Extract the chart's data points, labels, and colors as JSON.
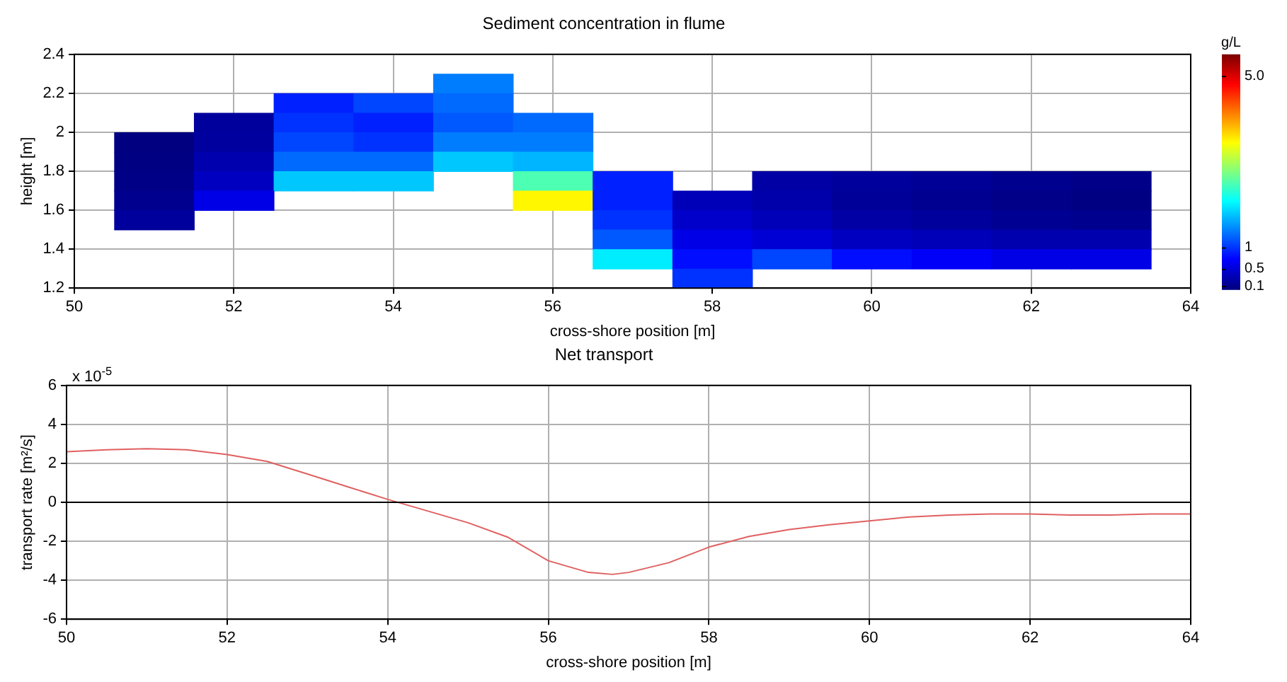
{
  "chart_data": [
    {
      "type": "heatmap",
      "title": "Sediment concentration in flume",
      "xlabel": "cross-shore position [m]",
      "ylabel": "height [m]",
      "clabel": "g/L",
      "x": [
        51,
        52,
        53,
        54,
        55,
        56,
        57,
        58,
        59,
        60,
        61,
        62,
        63
      ],
      "y": [
        2.25,
        2.15,
        2.05,
        1.95,
        1.85,
        1.75,
        1.65,
        1.55,
        1.45,
        1.35,
        1.25
      ],
      "cells": [
        [
          null,
          null,
          null,
          null,
          1.4,
          null,
          null,
          null,
          null,
          null,
          null,
          null,
          null
        ],
        [
          null,
          null,
          0.9,
          1.1,
          1.3,
          null,
          null,
          null,
          null,
          null,
          null,
          null,
          null
        ],
        [
          null,
          0.2,
          1.0,
          0.9,
          1.2,
          1.3,
          null,
          null,
          null,
          null,
          null,
          null,
          null
        ],
        [
          0.06,
          0.22,
          1.1,
          1.0,
          1.4,
          1.4,
          null,
          null,
          null,
          null,
          null,
          null,
          null
        ],
        [
          0.07,
          0.3,
          1.3,
          1.3,
          1.8,
          1.7,
          null,
          null,
          null,
          null,
          null,
          null,
          null
        ],
        [
          0.09,
          0.4,
          1.8,
          1.8,
          null,
          2.5,
          0.9,
          null,
          0.25,
          0.2,
          0.17,
          0.13,
          0.1
        ],
        [
          0.13,
          0.6,
          null,
          null,
          null,
          3.5,
          0.9,
          0.35,
          0.28,
          0.18,
          0.14,
          0.1,
          0.07
        ],
        [
          0.2,
          null,
          null,
          null,
          null,
          null,
          1.0,
          0.45,
          0.35,
          0.25,
          0.2,
          0.15,
          0.13
        ],
        [
          null,
          null,
          null,
          null,
          null,
          null,
          1.2,
          0.6,
          0.5,
          0.4,
          0.35,
          0.3,
          0.3
        ],
        [
          null,
          null,
          null,
          null,
          null,
          null,
          2.0,
          0.8,
          1.1,
          0.8,
          0.7,
          0.6,
          0.6
        ],
        [
          null,
          null,
          null,
          null,
          null,
          null,
          null,
          1.0,
          null,
          null,
          null,
          null,
          null
        ]
      ],
      "xlim": [
        50,
        64
      ],
      "xticks": [
        50,
        52,
        54,
        56,
        58,
        60,
        62,
        64
      ],
      "ylim": [
        1.2,
        2.4
      ],
      "yticks": [
        1.2,
        1.4,
        1.6,
        1.8,
        2,
        2.2,
        2.4
      ],
      "clim": [
        0.05,
        5.5
      ],
      "cticks": [
        0.1,
        0.5,
        1,
        {
          "value": 5,
          "label": "5.0"
        }
      ],
      "grid": true,
      "legend": false
    },
    {
      "type": "line",
      "title": "Net transport",
      "xlabel": "cross-shore position [m]",
      "ylabel": "transport rate [m²/s]",
      "annotations": [
        "x 10$^{-5}$"
      ],
      "series": [
        {
          "color": "#e06060",
          "x": [
            50,
            50.5,
            51,
            51.5,
            52,
            52.5,
            53,
            53.5,
            54,
            54.5,
            55,
            55.5,
            56,
            56.5,
            56.8,
            57,
            57.5,
            58,
            58.5,
            59,
            59.5,
            60,
            60.5,
            61,
            61.5,
            62,
            62.5,
            63,
            63.5,
            64
          ],
          "values": [
            2.6,
            2.7,
            2.75,
            2.7,
            2.45,
            2.1,
            1.45,
            0.8,
            0.15,
            -0.45,
            -1.05,
            -1.8,
            -3.0,
            -3.6,
            -3.7,
            -3.6,
            -3.1,
            -2.3,
            -1.75,
            -1.4,
            -1.15,
            -0.95,
            -0.75,
            -0.65,
            -0.6,
            -0.6,
            -0.65,
            -0.65,
            -0.6,
            -0.6
          ]
        }
      ],
      "xlim": [
        50,
        64
      ],
      "xticks": [
        50,
        52,
        54,
        56,
        58,
        60,
        62,
        64
      ],
      "ylim": [
        -6,
        6
      ],
      "yticks": [
        -6,
        -4,
        -2,
        0,
        2,
        4,
        6
      ],
      "ref_lines": [
        {
          "axis": "y",
          "value": 0,
          "color": "#000000"
        }
      ],
      "grid": true,
      "legend": false,
      "marker": "none",
      "line_style": "solid"
    }
  ]
}
